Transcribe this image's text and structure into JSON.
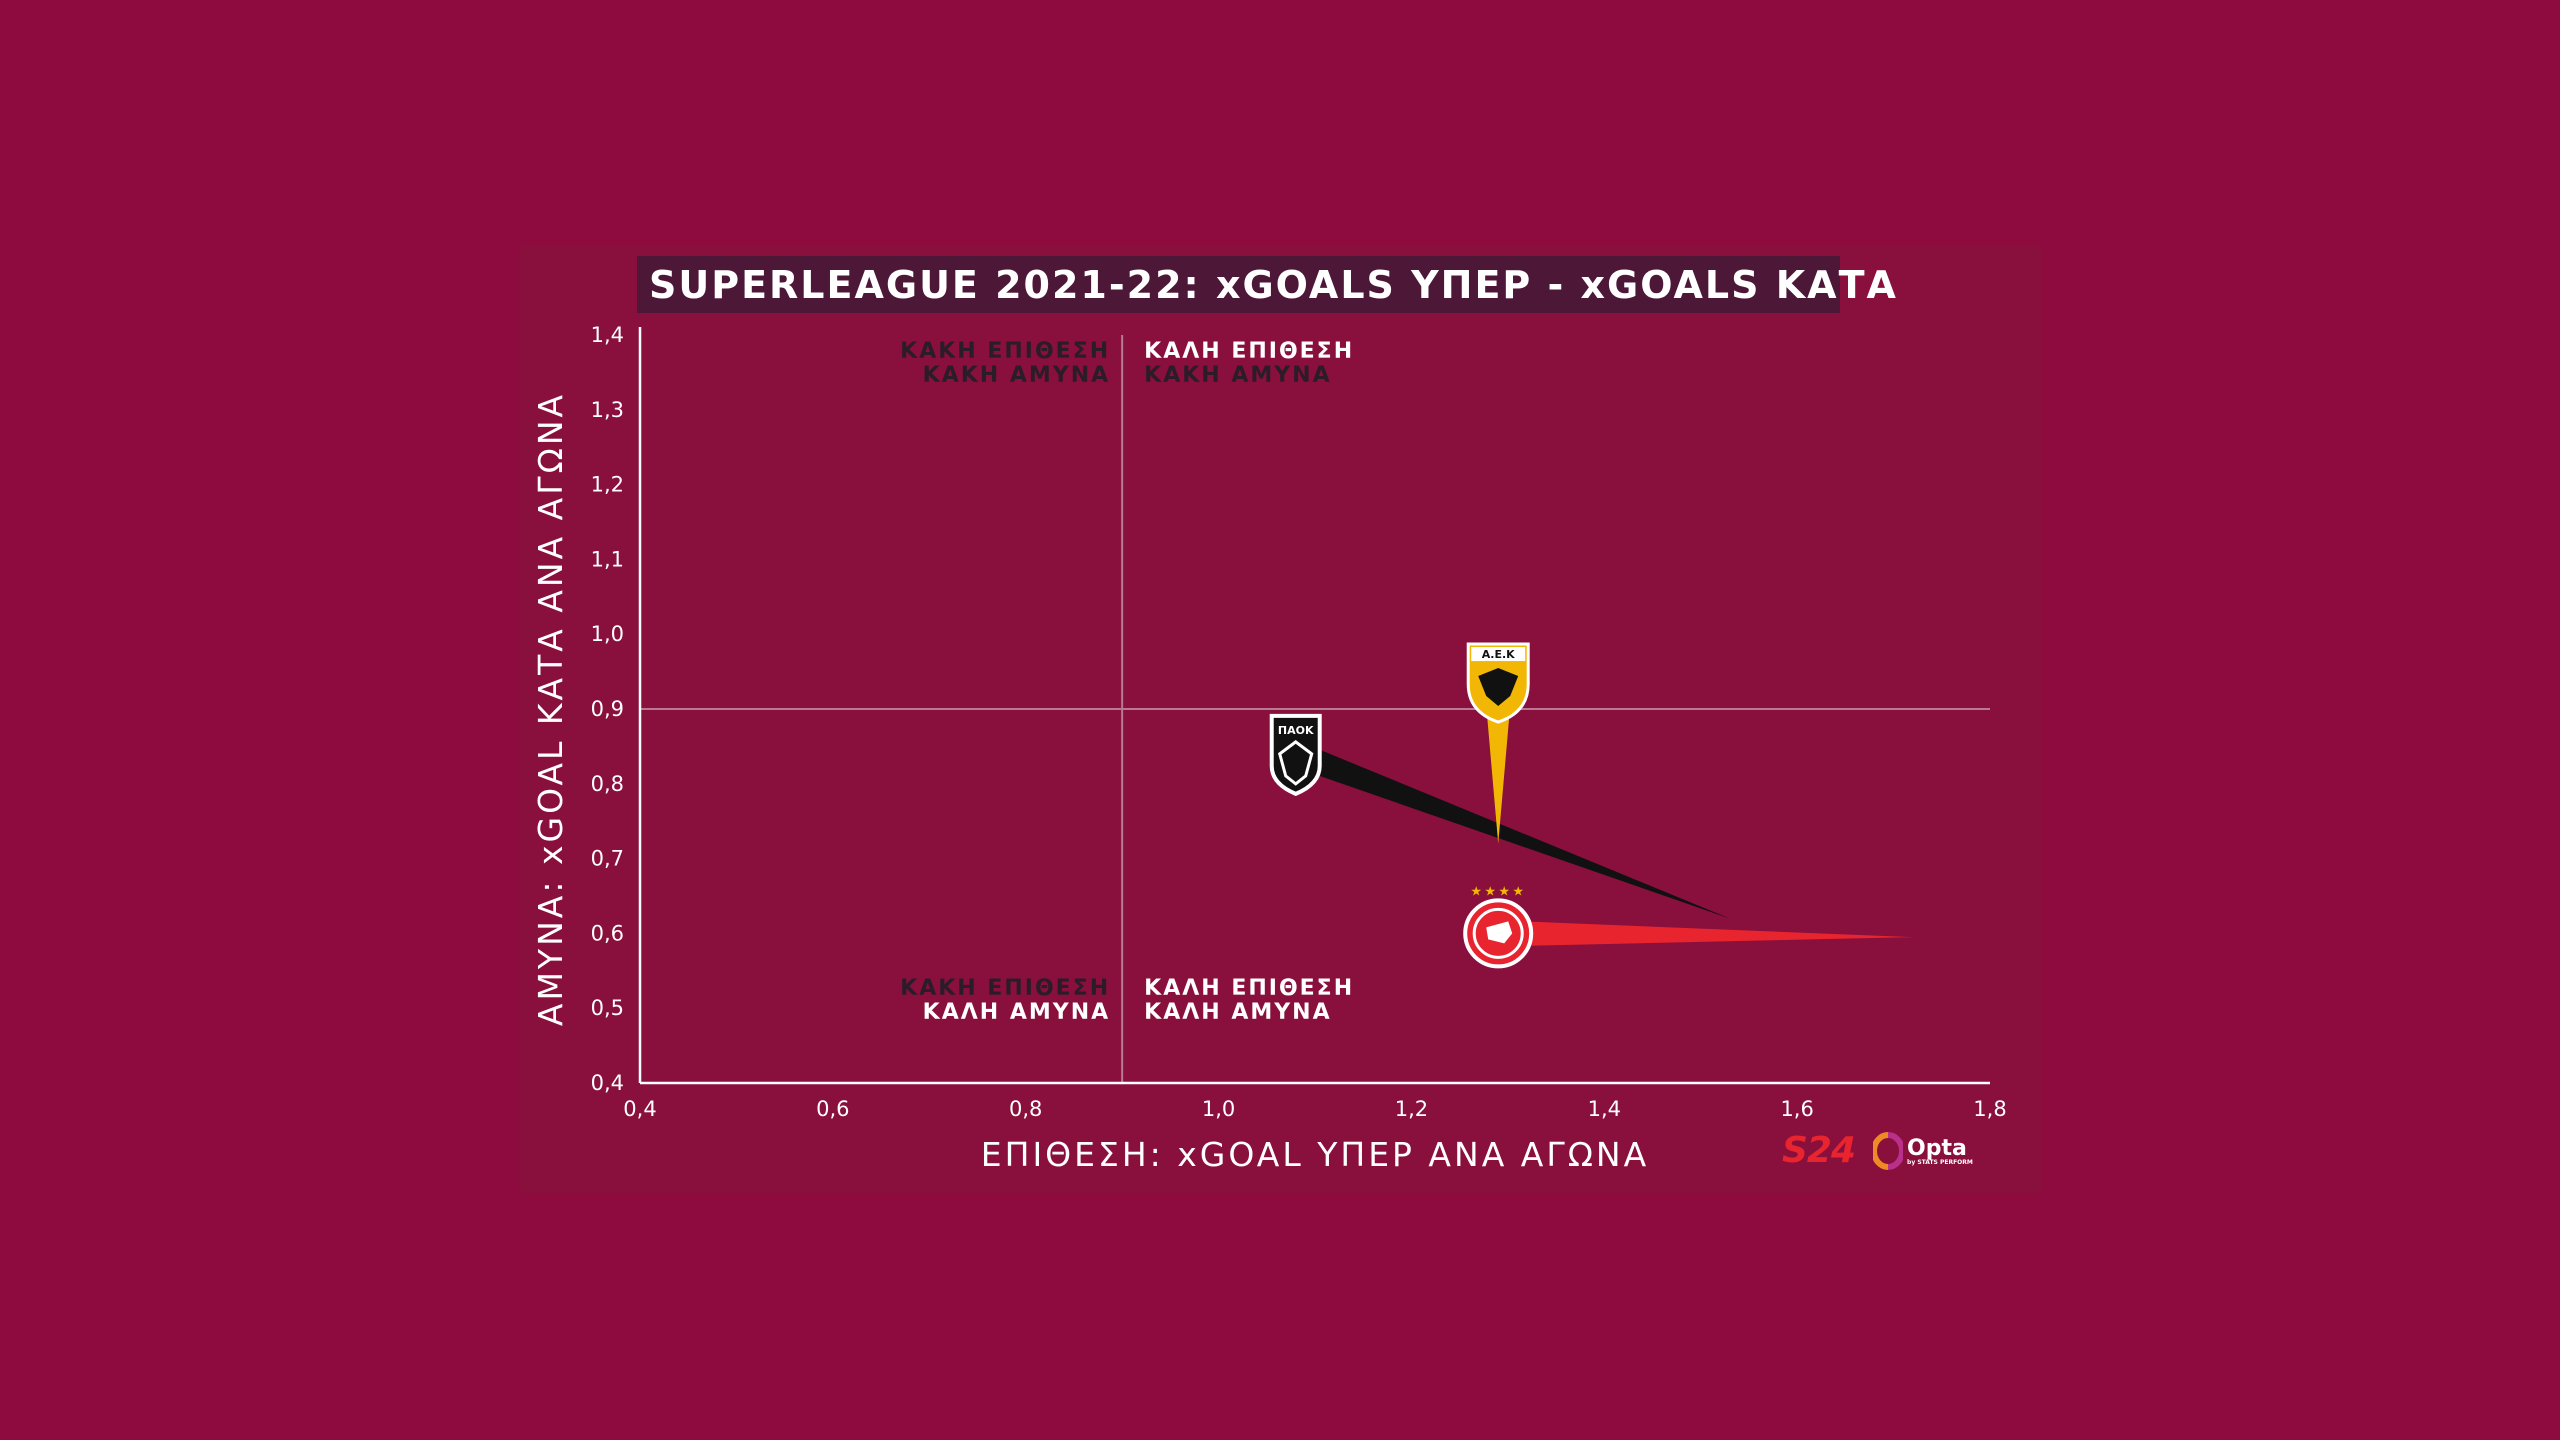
{
  "title": "SUPERLEAGUE 2021-22: xGOALS ΥΠΕΡ - xGOALS ΚΑΤΑ",
  "quadrants": {
    "top_left": [
      "ΚΑΚΗ ΕΠΙΘΕΣΗ",
      "ΚΑΚΗ ΑΜΥΝΑ"
    ],
    "top_right": [
      "ΚΑΛΗ ΕΠΙΘΕΣΗ",
      "ΚΑΚΗ ΑΜΥΝΑ"
    ],
    "bottom_left": [
      "ΚΑΚΗ ΕΠΙΘΕΣΗ",
      "ΚΑΛΗ ΑΜΥΝΑ"
    ],
    "bottom_right": [
      "ΚΑΛΗ ΕΠΙΘΕΣΗ",
      "ΚΑΛΗ ΑΜΥΝΑ"
    ]
  },
  "logos": {
    "s24": "S24",
    "opta": "Opta",
    "opta_sub": "by STATS PERFORM"
  },
  "colors": {
    "background": "#8e0b3f",
    "title_bg": "#4d1738",
    "paok": "#111111",
    "aek": "#f2b705",
    "olympiacos": "#e8242f"
  },
  "chart_data": {
    "type": "scatter",
    "title": "SUPERLEAGUE 2021-22: xGOALS ΥΠΕΡ - xGOALS ΚΑΤΑ",
    "xlabel": "ΕΠΙΘΕΣΗ: xGOAL ΥΠΕΡ ΑΝΑ ΑΓΩΝΑ",
    "ylabel": "ΑΜΥΝΑ: xGOAL ΚΑΤΑ ΑΝΑ ΑΓΩΝΑ",
    "xlim": [
      0.4,
      1.8
    ],
    "ylim": [
      0.4,
      1.4
    ],
    "x_ticks": [
      "0,4",
      "0,6",
      "0,8",
      "1,0",
      "1,2",
      "1,4",
      "1,6",
      "1,8"
    ],
    "x_tick_values": [
      0.4,
      0.6,
      0.8,
      1.0,
      1.2,
      1.4,
      1.6,
      1.8
    ],
    "y_ticks": [
      "0,4",
      "0,5",
      "0,6",
      "0,7",
      "0,8",
      "0,9",
      "1,0",
      "1,1",
      "1,2",
      "1,3",
      "1,4"
    ],
    "y_tick_values": [
      0.4,
      0.5,
      0.6,
      0.7,
      0.8,
      0.9,
      1.0,
      1.1,
      1.2,
      1.3,
      1.4
    ],
    "reference_lines": {
      "x": 0.9,
      "y": 0.9
    },
    "grid": false,
    "points": [
      {
        "team": "PAOK",
        "badge_text": "ΠΑΟΚ",
        "icon": "paok-eagle-badge",
        "x": 1.08,
        "y": 0.84,
        "tail_to": {
          "x": 1.53,
          "y": 0.62
        },
        "color": "#111111"
      },
      {
        "team": "AEK",
        "badge_text": "Α.Ε.Κ",
        "icon": "aek-eagle-shield",
        "x": 1.29,
        "y": 0.92,
        "tail_to": {
          "x": 1.29,
          "y": 0.72
        },
        "color": "#f2b705"
      },
      {
        "team": "Olympiacos",
        "icon": "olympiacos-roundel",
        "x": 1.29,
        "y": 0.6,
        "tail_to": {
          "x": 1.72,
          "y": 0.595
        },
        "color": "#e8242f"
      }
    ]
  }
}
